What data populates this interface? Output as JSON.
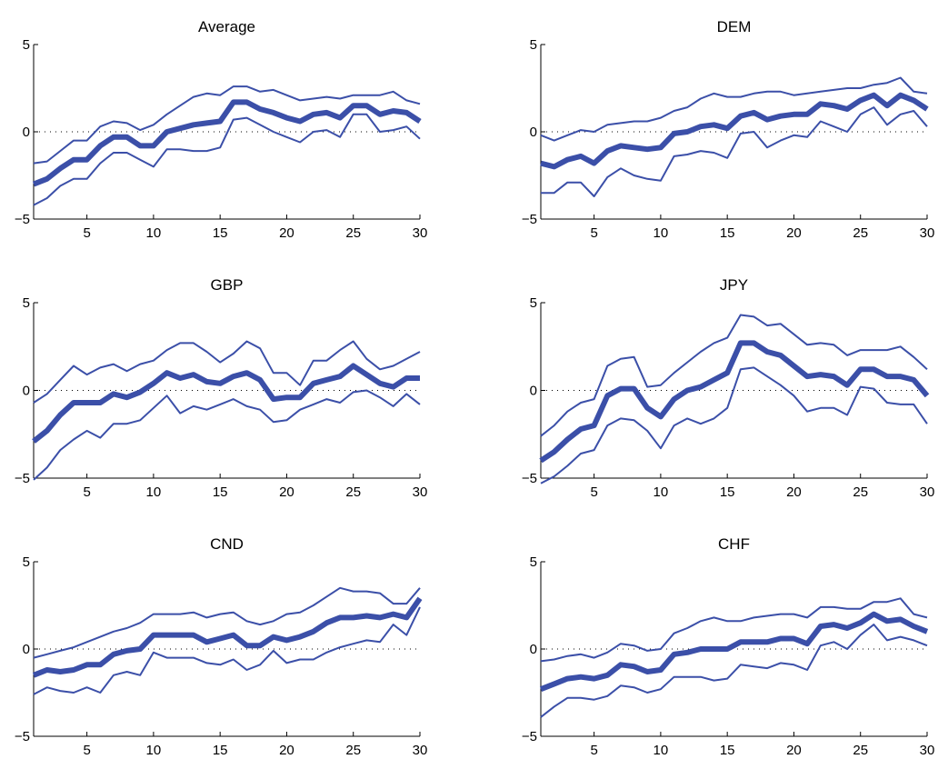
{
  "colors": {
    "series": "#3b4fa8",
    "axis": "#000000",
    "background": "#ffffff"
  },
  "chart_data": [
    {
      "type": "line",
      "title": "Average",
      "xlim": [
        1,
        30
      ],
      "ylim": [
        -5,
        5
      ],
      "xticks": [
        5,
        10,
        15,
        20,
        25,
        30
      ],
      "yticks": [
        -5,
        0,
        5
      ],
      "ytick_labels": [
        "−5",
        "0",
        "5"
      ],
      "grid": false,
      "reference_line": 0,
      "x": [
        1,
        2,
        3,
        4,
        5,
        6,
        7,
        8,
        9,
        10,
        11,
        12,
        13,
        14,
        15,
        16,
        17,
        18,
        19,
        20,
        21,
        22,
        23,
        24,
        25,
        26,
        27,
        28,
        29,
        30
      ],
      "series": [
        {
          "role": "upper",
          "values": [
            -1.8,
            -1.7,
            -1.1,
            -0.5,
            -0.5,
            0.3,
            0.6,
            0.5,
            0.1,
            0.4,
            1.0,
            1.5,
            2.0,
            2.2,
            2.1,
            2.6,
            2.6,
            2.3,
            2.4,
            2.1,
            1.8,
            1.9,
            2.0,
            1.9,
            2.1,
            2.1,
            2.1,
            2.3,
            1.8,
            1.6
          ]
        },
        {
          "role": "estimate",
          "values": [
            -3.0,
            -2.7,
            -2.1,
            -1.6,
            -1.6,
            -0.8,
            -0.3,
            -0.3,
            -0.8,
            -0.8,
            0.0,
            0.2,
            0.4,
            0.5,
            0.6,
            1.7,
            1.7,
            1.3,
            1.1,
            0.8,
            0.6,
            1.0,
            1.1,
            0.8,
            1.5,
            1.5,
            1.0,
            1.2,
            1.1,
            0.6
          ]
        },
        {
          "role": "lower",
          "values": [
            -4.2,
            -3.8,
            -3.1,
            -2.7,
            -2.7,
            -1.8,
            -1.2,
            -1.2,
            -1.6,
            -2.0,
            -1.0,
            -1.0,
            -1.1,
            -1.1,
            -0.9,
            0.7,
            0.8,
            0.4,
            0.0,
            -0.3,
            -0.6,
            0.0,
            0.1,
            -0.3,
            1.0,
            1.0,
            0.0,
            0.1,
            0.3,
            -0.4
          ]
        }
      ]
    },
    {
      "type": "line",
      "title": "DEM",
      "xlim": [
        1,
        30
      ],
      "ylim": [
        -5,
        5
      ],
      "xticks": [
        5,
        10,
        15,
        20,
        25,
        30
      ],
      "yticks": [
        -5,
        0,
        5
      ],
      "ytick_labels": [
        "−5",
        "0",
        "5"
      ],
      "grid": false,
      "reference_line": 0,
      "x": [
        1,
        2,
        3,
        4,
        5,
        6,
        7,
        8,
        9,
        10,
        11,
        12,
        13,
        14,
        15,
        16,
        17,
        18,
        19,
        20,
        21,
        22,
        23,
        24,
        25,
        26,
        27,
        28,
        29,
        30
      ],
      "series": [
        {
          "role": "upper",
          "values": [
            -0.2,
            -0.5,
            -0.2,
            0.1,
            0.0,
            0.4,
            0.5,
            0.6,
            0.6,
            0.8,
            1.2,
            1.4,
            1.9,
            2.2,
            2.0,
            2.0,
            2.2,
            2.3,
            2.3,
            2.1,
            2.2,
            2.3,
            2.4,
            2.5,
            2.5,
            2.7,
            2.8,
            3.1,
            2.3,
            2.2
          ]
        },
        {
          "role": "estimate",
          "values": [
            -1.8,
            -2.0,
            -1.6,
            -1.4,
            -1.8,
            -1.1,
            -0.8,
            -0.9,
            -1.0,
            -0.9,
            -0.1,
            0.0,
            0.3,
            0.4,
            0.2,
            0.9,
            1.1,
            0.7,
            0.9,
            1.0,
            1.0,
            1.6,
            1.5,
            1.3,
            1.8,
            2.1,
            1.5,
            2.1,
            1.8,
            1.3
          ]
        },
        {
          "role": "lower",
          "values": [
            -3.5,
            -3.5,
            -2.9,
            -2.9,
            -3.7,
            -2.6,
            -2.1,
            -2.5,
            -2.7,
            -2.8,
            -1.4,
            -1.3,
            -1.1,
            -1.2,
            -1.5,
            -0.1,
            0.0,
            -0.9,
            -0.5,
            -0.2,
            -0.3,
            0.6,
            0.3,
            0.0,
            1.0,
            1.4,
            0.4,
            1.0,
            1.2,
            0.3
          ]
        }
      ]
    },
    {
      "type": "line",
      "title": "GBP",
      "xlim": [
        1,
        30
      ],
      "ylim": [
        -5,
        5
      ],
      "xticks": [
        5,
        10,
        15,
        20,
        25,
        30
      ],
      "yticks": [
        -5,
        0,
        5
      ],
      "ytick_labels": [
        "−5",
        "0",
        "5"
      ],
      "grid": false,
      "reference_line": 0,
      "x": [
        1,
        2,
        3,
        4,
        5,
        6,
        7,
        8,
        9,
        10,
        11,
        12,
        13,
        14,
        15,
        16,
        17,
        18,
        19,
        20,
        21,
        22,
        23,
        24,
        25,
        26,
        27,
        28,
        29,
        30
      ],
      "series": [
        {
          "role": "upper",
          "values": [
            -0.7,
            -0.2,
            0.6,
            1.4,
            0.9,
            1.3,
            1.5,
            1.1,
            1.5,
            1.7,
            2.3,
            2.7,
            2.7,
            2.2,
            1.6,
            2.1,
            2.8,
            2.4,
            1.0,
            1.0,
            0.3,
            1.7,
            1.7,
            2.3,
            2.8,
            1.8,
            1.2,
            1.4,
            1.8,
            2.2
          ]
        },
        {
          "role": "estimate",
          "values": [
            -2.9,
            -2.3,
            -1.4,
            -0.7,
            -0.7,
            -0.7,
            -0.2,
            -0.4,
            -0.1,
            0.4,
            1.0,
            0.7,
            0.9,
            0.5,
            0.4,
            0.8,
            1.0,
            0.6,
            -0.5,
            -0.4,
            -0.4,
            0.4,
            0.6,
            0.8,
            1.4,
            0.9,
            0.4,
            0.2,
            0.7,
            0.7
          ]
        },
        {
          "role": "lower",
          "values": [
            -5.1,
            -4.4,
            -3.4,
            -2.8,
            -2.3,
            -2.7,
            -1.9,
            -1.9,
            -1.7,
            -1.0,
            -0.3,
            -1.3,
            -0.9,
            -1.1,
            -0.8,
            -0.5,
            -0.9,
            -1.1,
            -1.8,
            -1.7,
            -1.1,
            -0.8,
            -0.5,
            -0.7,
            -0.1,
            0.0,
            -0.4,
            -0.9,
            -0.2,
            -0.8
          ]
        }
      ]
    },
    {
      "type": "line",
      "title": "JPY",
      "xlim": [
        1,
        30
      ],
      "ylim": [
        -5,
        5
      ],
      "xticks": [
        5,
        10,
        15,
        20,
        25,
        30
      ],
      "yticks": [
        -5,
        0,
        5
      ],
      "ytick_labels": [
        "−5",
        "0",
        "5"
      ],
      "grid": false,
      "reference_line": 0,
      "x": [
        1,
        2,
        3,
        4,
        5,
        6,
        7,
        8,
        9,
        10,
        11,
        12,
        13,
        14,
        15,
        16,
        17,
        18,
        19,
        20,
        21,
        22,
        23,
        24,
        25,
        26,
        27,
        28,
        29,
        30
      ],
      "series": [
        {
          "role": "upper",
          "values": [
            -2.6,
            -2.0,
            -1.2,
            -0.7,
            -0.5,
            1.4,
            1.8,
            1.9,
            0.2,
            0.3,
            1.0,
            1.6,
            2.2,
            2.7,
            3.0,
            4.3,
            4.2,
            3.7,
            3.8,
            3.2,
            2.6,
            2.7,
            2.6,
            2.0,
            2.3,
            2.3,
            2.3,
            2.5,
            1.9,
            1.2
          ]
        },
        {
          "role": "estimate",
          "values": [
            -4.0,
            -3.5,
            -2.8,
            -2.2,
            -2.0,
            -0.3,
            0.1,
            0.1,
            -1.0,
            -1.5,
            -0.5,
            0.0,
            0.2,
            0.6,
            1.0,
            2.7,
            2.7,
            2.2,
            2.0,
            1.4,
            0.8,
            0.9,
            0.8,
            0.3,
            1.2,
            1.2,
            0.8,
            0.8,
            0.6,
            -0.3
          ]
        },
        {
          "role": "lower",
          "values": [
            -5.3,
            -4.9,
            -4.3,
            -3.6,
            -3.4,
            -2.0,
            -1.6,
            -1.7,
            -2.3,
            -3.3,
            -2.0,
            -1.6,
            -1.9,
            -1.6,
            -1.0,
            1.2,
            1.3,
            0.8,
            0.3,
            -0.3,
            -1.2,
            -1.0,
            -1.0,
            -1.4,
            0.2,
            0.1,
            -0.7,
            -0.8,
            -0.8,
            -1.9
          ]
        }
      ]
    },
    {
      "type": "line",
      "title": "CND",
      "xlim": [
        1,
        30
      ],
      "ylim": [
        -5,
        5
      ],
      "xticks": [
        5,
        10,
        15,
        20,
        25,
        30
      ],
      "yticks": [
        -5,
        0,
        5
      ],
      "ytick_labels": [
        "−5",
        "0",
        "5"
      ],
      "grid": false,
      "reference_line": 0,
      "x": [
        1,
        2,
        3,
        4,
        5,
        6,
        7,
        8,
        9,
        10,
        11,
        12,
        13,
        14,
        15,
        16,
        17,
        18,
        19,
        20,
        21,
        22,
        23,
        24,
        25,
        26,
        27,
        28,
        29,
        30
      ],
      "series": [
        {
          "role": "upper",
          "values": [
            -0.5,
            -0.3,
            -0.1,
            0.1,
            0.4,
            0.7,
            1.0,
            1.2,
            1.5,
            2.0,
            2.0,
            2.0,
            2.1,
            1.8,
            2.0,
            2.1,
            1.6,
            1.4,
            1.6,
            2.0,
            2.1,
            2.5,
            3.0,
            3.5,
            3.3,
            3.3,
            3.2,
            2.6,
            2.6,
            3.5
          ]
        },
        {
          "role": "estimate",
          "values": [
            -1.5,
            -1.2,
            -1.3,
            -1.2,
            -0.9,
            -0.9,
            -0.3,
            -0.1,
            0.0,
            0.8,
            0.8,
            0.8,
            0.8,
            0.4,
            0.6,
            0.8,
            0.2,
            0.2,
            0.7,
            0.5,
            0.7,
            1.0,
            1.5,
            1.8,
            1.8,
            1.9,
            1.8,
            2.0,
            1.8,
            2.9
          ]
        },
        {
          "role": "lower",
          "values": [
            -2.6,
            -2.2,
            -2.4,
            -2.5,
            -2.2,
            -2.5,
            -1.5,
            -1.3,
            -1.5,
            -0.2,
            -0.5,
            -0.5,
            -0.5,
            -0.8,
            -0.9,
            -0.6,
            -1.2,
            -0.9,
            -0.1,
            -0.8,
            -0.6,
            -0.6,
            -0.2,
            0.1,
            0.3,
            0.5,
            0.4,
            1.4,
            0.8,
            2.4
          ]
        }
      ]
    },
    {
      "type": "line",
      "title": "CHF",
      "xlim": [
        1,
        30
      ],
      "ylim": [
        -5,
        5
      ],
      "xticks": [
        5,
        10,
        15,
        20,
        25,
        30
      ],
      "yticks": [
        -5,
        0,
        5
      ],
      "ytick_labels": [
        "−5",
        "0",
        "5"
      ],
      "grid": false,
      "reference_line": 0,
      "x": [
        1,
        2,
        3,
        4,
        5,
        6,
        7,
        8,
        9,
        10,
        11,
        12,
        13,
        14,
        15,
        16,
        17,
        18,
        19,
        20,
        21,
        22,
        23,
        24,
        25,
        26,
        27,
        28,
        29,
        30
      ],
      "series": [
        {
          "role": "upper",
          "values": [
            -0.7,
            -0.6,
            -0.4,
            -0.3,
            -0.5,
            -0.2,
            0.3,
            0.2,
            -0.1,
            0.0,
            0.9,
            1.2,
            1.6,
            1.8,
            1.6,
            1.6,
            1.8,
            1.9,
            2.0,
            2.0,
            1.8,
            2.4,
            2.4,
            2.3,
            2.3,
            2.7,
            2.7,
            2.9,
            2.0,
            1.8
          ]
        },
        {
          "role": "estimate",
          "values": [
            -2.3,
            -2.0,
            -1.7,
            -1.6,
            -1.7,
            -1.5,
            -0.9,
            -1.0,
            -1.3,
            -1.2,
            -0.3,
            -0.2,
            0.0,
            0.0,
            0.0,
            0.4,
            0.4,
            0.4,
            0.6,
            0.6,
            0.3,
            1.3,
            1.4,
            1.2,
            1.5,
            2.0,
            1.6,
            1.7,
            1.3,
            1.0
          ]
        },
        {
          "role": "lower",
          "values": [
            -3.9,
            -3.3,
            -2.8,
            -2.8,
            -2.9,
            -2.7,
            -2.1,
            -2.2,
            -2.5,
            -2.3,
            -1.6,
            -1.6,
            -1.6,
            -1.8,
            -1.7,
            -0.9,
            -1.0,
            -1.1,
            -0.8,
            -0.9,
            -1.2,
            0.2,
            0.4,
            0.0,
            0.8,
            1.4,
            0.5,
            0.7,
            0.5,
            0.2
          ]
        }
      ]
    }
  ]
}
